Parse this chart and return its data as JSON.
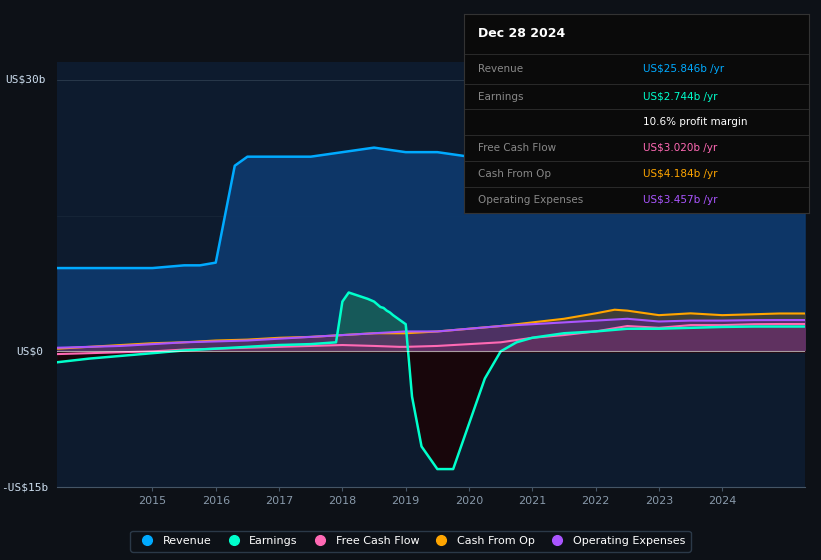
{
  "background_color": "#0d1117",
  "plot_bg_color": "#0d1b2e",
  "ylim": [
    -15,
    32
  ],
  "xlim": [
    2013.5,
    2025.3
  ],
  "x_tick_positions": [
    2015,
    2016,
    2017,
    2018,
    2019,
    2020,
    2021,
    2022,
    2023,
    2024
  ],
  "legend": [
    {
      "label": "Revenue",
      "color": "#00aaff"
    },
    {
      "label": "Earnings",
      "color": "#00ffcc"
    },
    {
      "label": "Free Cash Flow",
      "color": "#ff69b4"
    },
    {
      "label": "Cash From Op",
      "color": "#ffa500"
    },
    {
      "label": "Operating Expenses",
      "color": "#aa55ff"
    }
  ],
  "infobox": {
    "title": "Dec 28 2024",
    "rows": [
      {
        "label": "Revenue",
        "value": "US$25.846b /yr",
        "label_color": "#888888",
        "value_color": "#00aaff"
      },
      {
        "label": "Earnings",
        "value": "US$2.744b /yr",
        "label_color": "#888888",
        "value_color": "#00ffcc"
      },
      {
        "label": "",
        "value": "10.6% profit margin",
        "label_color": "#888888",
        "value_color": "#ffffff"
      },
      {
        "label": "Free Cash Flow",
        "value": "US$3.020b /yr",
        "label_color": "#888888",
        "value_color": "#ff69b4"
      },
      {
        "label": "Cash From Op",
        "value": "US$4.184b /yr",
        "label_color": "#888888",
        "value_color": "#ffa500"
      },
      {
        "label": "Operating Expenses",
        "value": "US$3.457b /yr",
        "label_color": "#888888",
        "value_color": "#aa55ff"
      }
    ]
  },
  "revenue_x": [
    2013.5,
    2014.0,
    2014.5,
    2014.75,
    2015.0,
    2015.5,
    2015.75,
    2016.0,
    2016.3,
    2016.5,
    2016.75,
    2017.0,
    2017.5,
    2018.0,
    2018.5,
    2019.0,
    2019.5,
    2020.0,
    2020.5,
    2021.0,
    2021.5,
    2022.0,
    2022.5,
    2023.0,
    2023.5,
    2024.0,
    2024.5,
    2024.9,
    2025.3
  ],
  "revenue_y": [
    9.2,
    9.2,
    9.2,
    9.2,
    9.2,
    9.5,
    9.5,
    9.8,
    20.5,
    21.5,
    21.5,
    21.5,
    21.5,
    22.0,
    22.5,
    22.0,
    22.0,
    21.5,
    22.0,
    22.5,
    22.5,
    23.5,
    24.5,
    24.0,
    24.5,
    25.0,
    25.5,
    25.846,
    25.846
  ],
  "earnings_x": [
    2013.5,
    2014.0,
    2014.5,
    2015.0,
    2015.5,
    2016.0,
    2016.5,
    2017.0,
    2017.5,
    2017.9,
    2018.0,
    2018.1,
    2018.4,
    2018.5,
    2018.55,
    2018.6,
    2018.65,
    2018.7,
    2018.75,
    2018.8,
    2018.9,
    2019.0,
    2019.1,
    2019.25,
    2019.5,
    2019.75,
    2020.0,
    2020.25,
    2020.5,
    2020.75,
    2021.0,
    2021.5,
    2022.0,
    2022.5,
    2023.0,
    2023.5,
    2024.0,
    2024.5,
    2024.9,
    2025.3
  ],
  "earnings_y": [
    -1.2,
    -0.8,
    -0.5,
    -0.2,
    0.1,
    0.3,
    0.5,
    0.7,
    0.8,
    1.0,
    5.5,
    6.5,
    5.8,
    5.5,
    5.2,
    4.9,
    4.8,
    4.5,
    4.3,
    4.0,
    3.5,
    3.0,
    -5.0,
    -10.5,
    -13.0,
    -13.0,
    -8.0,
    -3.0,
    0.0,
    1.0,
    1.5,
    2.0,
    2.2,
    2.5,
    2.5,
    2.6,
    2.7,
    2.744,
    2.744,
    2.744
  ],
  "fcf_x": [
    2013.5,
    2014.0,
    2014.5,
    2015.0,
    2015.5,
    2016.0,
    2016.5,
    2017.0,
    2017.5,
    2018.0,
    2018.5,
    2018.9,
    2019.0,
    2019.5,
    2020.0,
    2020.5,
    2021.0,
    2021.5,
    2022.0,
    2022.5,
    2023.0,
    2023.5,
    2024.0,
    2024.5,
    2024.9,
    2025.3
  ],
  "fcf_y": [
    -0.3,
    -0.2,
    -0.1,
    0.0,
    0.2,
    0.3,
    0.4,
    0.5,
    0.6,
    0.7,
    0.6,
    0.5,
    0.5,
    0.6,
    0.8,
    1.0,
    1.5,
    1.8,
    2.2,
    2.8,
    2.6,
    2.9,
    2.9,
    3.0,
    3.02,
    3.02
  ],
  "cfo_x": [
    2013.5,
    2014.0,
    2014.5,
    2015.0,
    2015.5,
    2016.0,
    2016.5,
    2017.0,
    2017.5,
    2018.0,
    2018.5,
    2019.0,
    2019.5,
    2020.0,
    2020.5,
    2021.0,
    2021.5,
    2022.0,
    2022.3,
    2022.5,
    2022.7,
    2023.0,
    2023.5,
    2024.0,
    2024.5,
    2024.9,
    2025.3
  ],
  "cfo_y": [
    0.3,
    0.5,
    0.7,
    0.9,
    1.0,
    1.2,
    1.3,
    1.5,
    1.6,
    1.8,
    2.0,
    2.0,
    2.2,
    2.5,
    2.8,
    3.2,
    3.6,
    4.2,
    4.6,
    4.5,
    4.3,
    4.0,
    4.2,
    4.0,
    4.1,
    4.184,
    4.184
  ],
  "oe_x": [
    2013.5,
    2014.0,
    2014.5,
    2015.0,
    2015.5,
    2016.0,
    2016.5,
    2017.0,
    2017.5,
    2018.0,
    2018.5,
    2019.0,
    2019.5,
    2020.0,
    2020.5,
    2021.0,
    2021.5,
    2022.0,
    2022.5,
    2023.0,
    2023.5,
    2024.0,
    2024.5,
    2024.9,
    2025.3
  ],
  "oe_y": [
    0.4,
    0.5,
    0.6,
    0.8,
    1.0,
    1.1,
    1.2,
    1.4,
    1.6,
    1.8,
    2.0,
    2.2,
    2.2,
    2.5,
    2.8,
    3.0,
    3.2,
    3.4,
    3.6,
    3.3,
    3.4,
    3.4,
    3.45,
    3.457,
    3.457
  ]
}
